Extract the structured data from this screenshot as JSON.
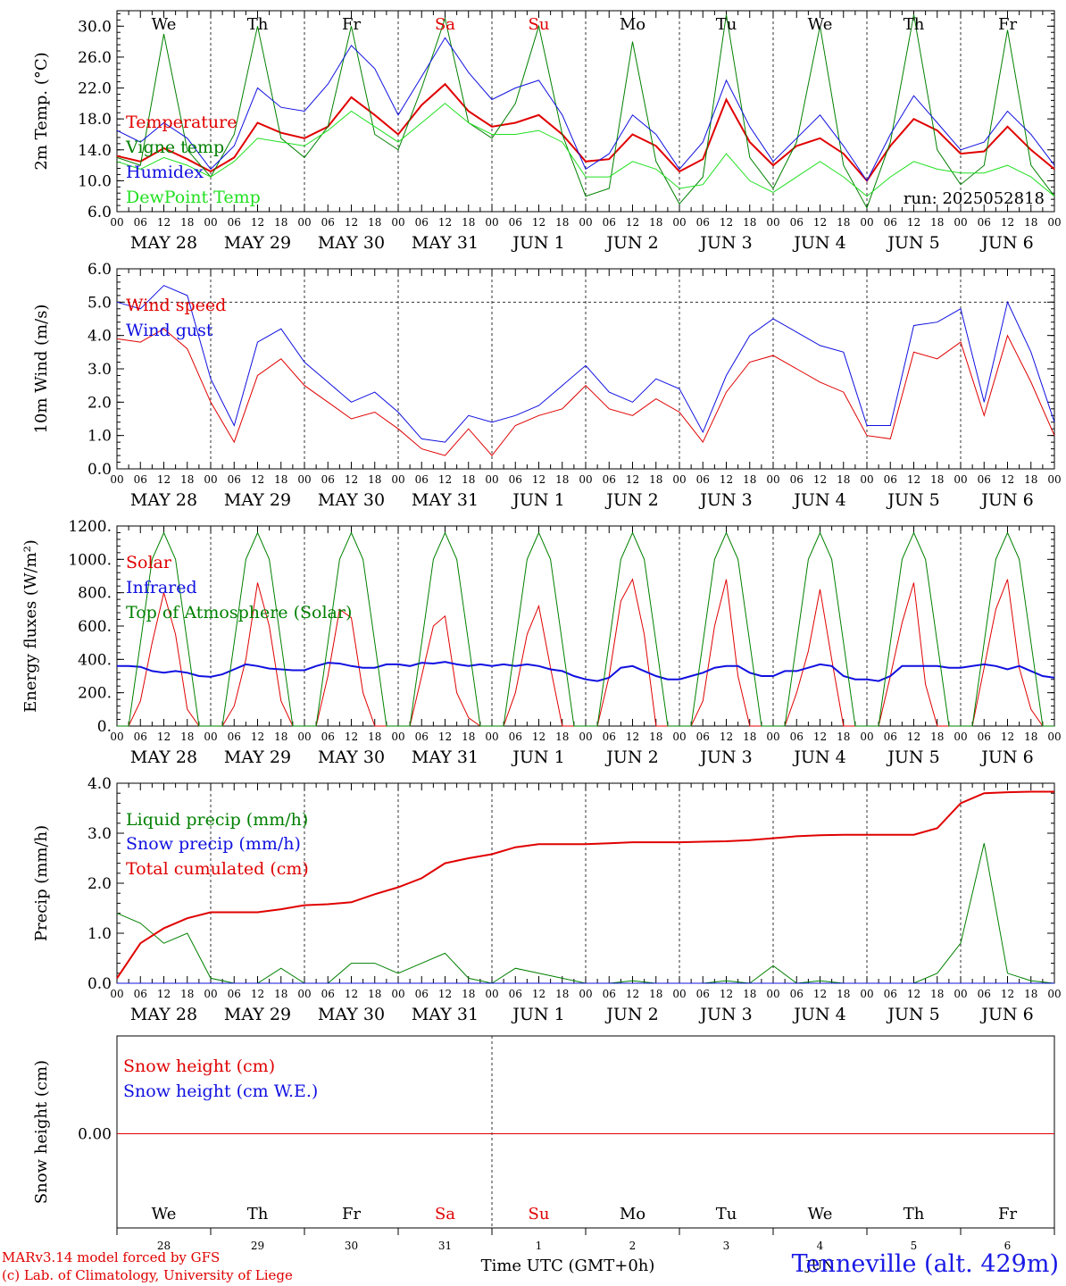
{
  "colors": {
    "red": "#e00000",
    "blue": "#1010e0",
    "green": "#008000",
    "lightgreen": "#20e020",
    "grid": "#555555"
  },
  "day_names": [
    "We",
    "Th",
    "Fr",
    "Sa",
    "Su",
    "Mo",
    "Tu",
    "We",
    "Th",
    "Fr"
  ],
  "weekend_days": [
    "Sa",
    "Su"
  ],
  "date_labels": [
    "MAY 28",
    "MAY 29",
    "MAY 30",
    "MAY 31",
    "JUN  1",
    "JUN  2",
    "JUN  3",
    "JUN  4",
    "JUN  5",
    "JUN  6"
  ],
  "hour_labels": [
    "00",
    "06",
    "12",
    "18"
  ],
  "bottom_day_numbers": [
    "28",
    "29",
    "30",
    "31",
    "1",
    "2",
    "3",
    "4",
    "5",
    "6"
  ],
  "bottom_month": "JUN",
  "x_axis_label": "Time UTC (GMT+0h)",
  "run_label": "run: 2025052818",
  "credit_line1": "MARv3.14 model forced by GFS",
  "credit_line2": "(c) Lab. of Climatology, University of Liege",
  "station": "Tenneville (alt. 429m)",
  "chart_data": [
    {
      "type": "line",
      "id": "temperature",
      "ylabel": "2m Temp. (°C)",
      "ylim": [
        6,
        32
      ],
      "yticks": [
        "6.0",
        "10.0",
        "14.0",
        "18.0",
        "22.0",
        "26.0",
        "30.0"
      ],
      "x": [
        "2025-05-28T00",
        "2025-05-28T06",
        "2025-05-28T12",
        "2025-05-28T18",
        "2025-05-29T00",
        "2025-05-29T06",
        "2025-05-29T12",
        "2025-05-29T18",
        "2025-05-30T00",
        "2025-05-30T06",
        "2025-05-30T12",
        "2025-05-30T18",
        "2025-05-31T00",
        "2025-05-31T06",
        "2025-05-31T12",
        "2025-05-31T18",
        "2025-06-01T00",
        "2025-06-01T06",
        "2025-06-01T12",
        "2025-06-01T18",
        "2025-06-02T00",
        "2025-06-02T06",
        "2025-06-02T12",
        "2025-06-02T18",
        "2025-06-03T00",
        "2025-06-03T06",
        "2025-06-03T12",
        "2025-06-03T18",
        "2025-06-04T00",
        "2025-06-04T06",
        "2025-06-04T12",
        "2025-06-04T18",
        "2025-06-05T00",
        "2025-06-05T06",
        "2025-06-05T12",
        "2025-06-05T18",
        "2025-06-06T00",
        "2025-06-06T06",
        "2025-06-06T12",
        "2025-06-06T18",
        "2025-06-07T00"
      ],
      "series": [
        {
          "name": "Temperature",
          "color": "red",
          "width": 2,
          "values": [
            13.2,
            12.5,
            14.2,
            12.8,
            11.2,
            13.0,
            17.5,
            16.2,
            15.5,
            17.0,
            20.8,
            18.5,
            16.0,
            19.8,
            22.5,
            19.0,
            17.0,
            17.5,
            18.5,
            16.0,
            12.5,
            12.8,
            16.0,
            14.5,
            11.2,
            12.8,
            20.5,
            15.0,
            12.0,
            14.5,
            15.5,
            13.5,
            10.0,
            14.5,
            18.0,
            16.5,
            13.5,
            13.8,
            17.0,
            14.0,
            11.5
          ]
        },
        {
          "name": "Vigne temp",
          "color": "green",
          "width": 1,
          "values": [
            13.0,
            12.0,
            29.0,
            14.0,
            10.5,
            16.0,
            30.0,
            15.5,
            13.0,
            17.0,
            30.0,
            16.0,
            14.0,
            22.0,
            31.0,
            17.5,
            15.5,
            20.0,
            30.0,
            16.0,
            8.0,
            9.0,
            28.0,
            12.5,
            7.0,
            10.5,
            31.5,
            13.0,
            9.0,
            15.0,
            30.0,
            12.0,
            6.5,
            15.0,
            31.5,
            14.0,
            9.5,
            12.0,
            29.5,
            12.0,
            8.0
          ]
        },
        {
          "name": "Humidex",
          "color": "blue",
          "width": 1,
          "values": [
            16.5,
            15.0,
            17.5,
            15.5,
            11.5,
            14.5,
            22.0,
            19.5,
            19.0,
            22.5,
            27.5,
            24.5,
            18.5,
            23.5,
            28.5,
            24.0,
            20.5,
            22.0,
            23.0,
            18.5,
            11.5,
            13.5,
            18.5,
            16.0,
            11.5,
            15.0,
            23.0,
            17.0,
            12.5,
            15.5,
            18.5,
            14.5,
            10.0,
            16.0,
            21.0,
            17.5,
            14.0,
            15.0,
            19.0,
            16.0,
            12.0
          ]
        },
        {
          "name": "DewPoint Temp",
          "color": "lightgreen",
          "width": 1,
          "values": [
            12.5,
            11.5,
            13.0,
            12.0,
            10.5,
            12.5,
            15.5,
            15.0,
            14.5,
            16.5,
            19.0,
            17.0,
            15.0,
            17.5,
            20.0,
            17.5,
            16.0,
            16.0,
            16.5,
            15.0,
            10.5,
            10.5,
            12.5,
            11.5,
            9.0,
            9.5,
            13.5,
            10.0,
            8.5,
            10.5,
            12.5,
            10.5,
            8.0,
            10.5,
            12.5,
            11.5,
            11.0,
            11.0,
            12.0,
            10.5,
            8.0
          ]
        }
      ]
    },
    {
      "type": "line",
      "id": "wind",
      "ylabel": "10m Wind (m/s)",
      "ylim": [
        0,
        6
      ],
      "yticks": [
        "0.0",
        "1.0",
        "2.0",
        "3.0",
        "4.0",
        "5.0",
        "6.0"
      ],
      "reference_line": 5,
      "x": [
        "2025-05-28T00",
        "2025-05-28T06",
        "2025-05-28T12",
        "2025-05-28T18",
        "2025-05-29T00",
        "2025-05-29T06",
        "2025-05-29T12",
        "2025-05-29T18",
        "2025-05-30T00",
        "2025-05-30T06",
        "2025-05-30T12",
        "2025-05-30T18",
        "2025-05-31T00",
        "2025-05-31T06",
        "2025-05-31T12",
        "2025-05-31T18",
        "2025-06-01T00",
        "2025-06-01T06",
        "2025-06-01T12",
        "2025-06-01T18",
        "2025-06-02T00",
        "2025-06-02T06",
        "2025-06-02T12",
        "2025-06-02T18",
        "2025-06-03T00",
        "2025-06-03T06",
        "2025-06-03T12",
        "2025-06-03T18",
        "2025-06-04T00",
        "2025-06-04T06",
        "2025-06-04T12",
        "2025-06-04T18",
        "2025-06-05T00",
        "2025-06-05T06",
        "2025-06-05T12",
        "2025-06-05T18",
        "2025-06-06T00",
        "2025-06-06T06",
        "2025-06-06T12",
        "2025-06-06T18",
        "2025-06-07T00"
      ],
      "series": [
        {
          "name": "Wind speed",
          "color": "red",
          "width": 1,
          "values": [
            3.9,
            3.8,
            4.2,
            3.6,
            2.0,
            0.8,
            2.8,
            3.3,
            2.5,
            2.0,
            1.5,
            1.7,
            1.2,
            0.6,
            0.4,
            1.2,
            0.4,
            1.3,
            1.6,
            1.8,
            2.5,
            1.8,
            1.6,
            2.1,
            1.7,
            0.8,
            2.3,
            3.2,
            3.4,
            3.0,
            2.6,
            2.3,
            1.0,
            0.9,
            3.5,
            3.3,
            3.8,
            1.6,
            4.0,
            2.6,
            1.0
          ]
        },
        {
          "name": "Wind gust",
          "color": "blue",
          "width": 1,
          "values": [
            5.0,
            4.8,
            5.5,
            5.2,
            2.7,
            1.3,
            3.8,
            4.2,
            3.2,
            2.6,
            2.0,
            2.3,
            1.7,
            0.9,
            0.8,
            1.6,
            1.4,
            1.6,
            1.9,
            2.5,
            3.1,
            2.3,
            2.0,
            2.7,
            2.4,
            1.1,
            2.8,
            4.0,
            4.5,
            4.1,
            3.7,
            3.5,
            1.3,
            1.3,
            4.3,
            4.4,
            4.8,
            2.0,
            5.0,
            3.5,
            1.4
          ]
        }
      ]
    },
    {
      "type": "line",
      "id": "energy",
      "ylabel": "Energy fluxes (W/m²)",
      "ylim": [
        0,
        1200
      ],
      "yticks": [
        "0.",
        "200.",
        "400.",
        "600.",
        "800.",
        "1000.",
        "1200."
      ],
      "x": [
        "2025-05-28T00",
        "2025-05-28T03",
        "2025-05-28T06",
        "2025-05-28T09",
        "2025-05-28T12",
        "2025-05-28T15",
        "2025-05-28T18",
        "2025-05-28T21",
        "2025-05-29T00",
        "2025-05-29T03",
        "2025-05-29T06",
        "2025-05-29T09",
        "2025-05-29T12",
        "2025-05-29T15",
        "2025-05-29T18",
        "2025-05-29T21",
        "2025-05-30T00",
        "2025-05-30T03",
        "2025-05-30T06",
        "2025-05-30T09",
        "2025-05-30T12",
        "2025-05-30T15",
        "2025-05-30T18",
        "2025-05-30T21",
        "2025-05-31T00",
        "2025-05-31T03",
        "2025-05-31T06",
        "2025-05-31T09",
        "2025-05-31T12",
        "2025-05-31T15",
        "2025-05-31T18",
        "2025-05-31T21",
        "2025-06-01T00",
        "2025-06-01T03",
        "2025-06-01T06",
        "2025-06-01T09",
        "2025-06-01T12",
        "2025-06-01T15",
        "2025-06-01T18",
        "2025-06-01T21",
        "2025-06-02T00",
        "2025-06-02T03",
        "2025-06-02T06",
        "2025-06-02T09",
        "2025-06-02T12",
        "2025-06-02T15",
        "2025-06-02T18",
        "2025-06-02T21",
        "2025-06-03T00",
        "2025-06-03T03",
        "2025-06-03T06",
        "2025-06-03T09",
        "2025-06-03T12",
        "2025-06-03T15",
        "2025-06-03T18",
        "2025-06-03T21",
        "2025-06-04T00",
        "2025-06-04T03",
        "2025-06-04T06",
        "2025-06-04T09",
        "2025-06-04T12",
        "2025-06-04T15",
        "2025-06-04T18",
        "2025-06-04T21",
        "2025-06-05T00",
        "2025-06-05T03",
        "2025-06-05T06",
        "2025-06-05T09",
        "2025-06-05T12",
        "2025-06-05T15",
        "2025-06-05T18",
        "2025-06-05T21",
        "2025-06-06T00",
        "2025-06-06T03",
        "2025-06-06T06",
        "2025-06-06T09",
        "2025-06-06T12",
        "2025-06-06T15",
        "2025-06-06T18",
        "2025-06-06T21",
        "2025-06-07T00"
      ],
      "series": [
        {
          "name": "Solar",
          "color": "red",
          "width": 1,
          "values": [
            0,
            0,
            150,
            500,
            800,
            550,
            100,
            0,
            0,
            0,
            120,
            400,
            860,
            600,
            150,
            0,
            0,
            0,
            300,
            700,
            650,
            200,
            0,
            0,
            0,
            0,
            300,
            600,
            660,
            200,
            50,
            0,
            0,
            0,
            200,
            550,
            720,
            350,
            0,
            0,
            0,
            0,
            300,
            750,
            880,
            550,
            0,
            0,
            0,
            0,
            150,
            600,
            880,
            300,
            0,
            0,
            0,
            0,
            200,
            450,
            820,
            400,
            0,
            0,
            0,
            0,
            300,
            620,
            860,
            250,
            0,
            0,
            0,
            0,
            350,
            700,
            880,
            350,
            100,
            0,
            0
          ]
        },
        {
          "name": "Infrared",
          "color": "blue",
          "width": 2,
          "values": [
            360,
            360,
            355,
            330,
            320,
            330,
            320,
            300,
            295,
            310,
            340,
            370,
            360,
            345,
            340,
            335,
            335,
            360,
            380,
            375,
            360,
            350,
            350,
            370,
            370,
            360,
            380,
            375,
            385,
            370,
            360,
            370,
            360,
            370,
            360,
            370,
            360,
            340,
            330,
            300,
            280,
            270,
            290,
            350,
            360,
            330,
            300,
            280,
            280,
            300,
            320,
            350,
            360,
            360,
            320,
            300,
            300,
            330,
            330,
            350,
            370,
            360,
            300,
            280,
            280,
            270,
            300,
            360,
            360,
            360,
            360,
            350,
            350,
            360,
            370,
            360,
            340,
            360,
            330,
            300,
            290
          ]
        },
        {
          "name": "Top of Atmosphere (Solar)",
          "color": "green",
          "width": 1,
          "values": [
            0,
            0,
            500,
            1000,
            1160,
            1000,
            500,
            0,
            0,
            0,
            500,
            1000,
            1160,
            1000,
            500,
            0,
            0,
            0,
            500,
            1000,
            1160,
            1000,
            500,
            0,
            0,
            0,
            500,
            1000,
            1160,
            1000,
            500,
            0,
            0,
            0,
            500,
            1000,
            1160,
            1000,
            500,
            0,
            0,
            0,
            500,
            1000,
            1160,
            1000,
            500,
            0,
            0,
            0,
            500,
            1000,
            1160,
            1000,
            500,
            0,
            0,
            0,
            500,
            1000,
            1160,
            1000,
            500,
            0,
            0,
            0,
            500,
            1000,
            1160,
            1000,
            500,
            0,
            0,
            0,
            500,
            1000,
            1160,
            1000,
            500,
            0,
            0
          ]
        }
      ]
    },
    {
      "type": "line",
      "id": "precip",
      "ylabel": "Precip (mm/h)",
      "ylim": [
        0,
        4
      ],
      "yticks": [
        "0.0",
        "1.0",
        "2.0",
        "3.0",
        "4.0"
      ],
      "x": [
        "2025-05-28T00",
        "2025-05-28T06",
        "2025-05-28T12",
        "2025-05-28T18",
        "2025-05-29T00",
        "2025-05-29T06",
        "2025-05-29T12",
        "2025-05-29T18",
        "2025-05-30T00",
        "2025-05-30T06",
        "2025-05-30T12",
        "2025-05-30T18",
        "2025-05-31T00",
        "2025-05-31T06",
        "2025-05-31T12",
        "2025-05-31T18",
        "2025-06-01T00",
        "2025-06-01T06",
        "2025-06-01T12",
        "2025-06-01T18",
        "2025-06-02T00",
        "2025-06-02T06",
        "2025-06-02T12",
        "2025-06-02T18",
        "2025-06-03T00",
        "2025-06-03T06",
        "2025-06-03T12",
        "2025-06-03T18",
        "2025-06-04T00",
        "2025-06-04T06",
        "2025-06-04T12",
        "2025-06-04T18",
        "2025-06-05T00",
        "2025-06-05T06",
        "2025-06-05T12",
        "2025-06-05T18",
        "2025-06-06T00",
        "2025-06-06T06",
        "2025-06-06T12",
        "2025-06-06T18",
        "2025-06-07T00"
      ],
      "series": [
        {
          "name": "Liquid precip (mm/h)",
          "color": "green",
          "width": 1,
          "values": [
            1.4,
            1.2,
            0.8,
            1.0,
            0.1,
            0.0,
            0.0,
            0.3,
            0.0,
            0.0,
            0.4,
            0.4,
            0.2,
            0.4,
            0.6,
            0.1,
            0.0,
            0.3,
            0.2,
            0.1,
            0.0,
            0.0,
            0.05,
            0.0,
            0.0,
            0.0,
            0.05,
            0.0,
            0.35,
            0.0,
            0.05,
            0.0,
            0.0,
            0.0,
            0.0,
            0.2,
            0.8,
            2.8,
            0.2,
            0.05,
            0.0
          ]
        },
        {
          "name": "Snow precip (mm/h)",
          "color": "blue",
          "width": 1,
          "values": [
            0,
            0,
            0,
            0,
            0,
            0,
            0,
            0,
            0,
            0,
            0,
            0,
            0,
            0,
            0,
            0,
            0,
            0,
            0,
            0,
            0,
            0,
            0,
            0,
            0,
            0,
            0,
            0,
            0,
            0,
            0,
            0,
            0,
            0,
            0,
            0,
            0,
            0,
            0,
            0,
            0
          ]
        },
        {
          "name": "Total cumulated (cm)",
          "color": "red",
          "width": 2,
          "values": [
            0.1,
            0.8,
            1.1,
            1.3,
            1.42,
            1.42,
            1.42,
            1.48,
            1.56,
            1.58,
            1.62,
            1.78,
            1.92,
            2.1,
            2.4,
            2.5,
            2.58,
            2.72,
            2.78,
            2.78,
            2.78,
            2.8,
            2.82,
            2.82,
            2.82,
            2.83,
            2.84,
            2.86,
            2.9,
            2.94,
            2.96,
            2.97,
            2.97,
            2.97,
            2.97,
            3.1,
            3.6,
            3.8,
            3.82,
            3.83,
            3.83
          ]
        }
      ]
    },
    {
      "type": "line",
      "id": "snow",
      "ylabel": "Snow height (cm)",
      "yticks": [
        "0.00"
      ],
      "series": [
        {
          "name": "Snow height (cm)",
          "color": "red",
          "values": [
            0,
            0
          ]
        },
        {
          "name": "Snow height (cm W.E.)",
          "color": "blue",
          "values": [
            0,
            0
          ]
        }
      ]
    }
  ]
}
